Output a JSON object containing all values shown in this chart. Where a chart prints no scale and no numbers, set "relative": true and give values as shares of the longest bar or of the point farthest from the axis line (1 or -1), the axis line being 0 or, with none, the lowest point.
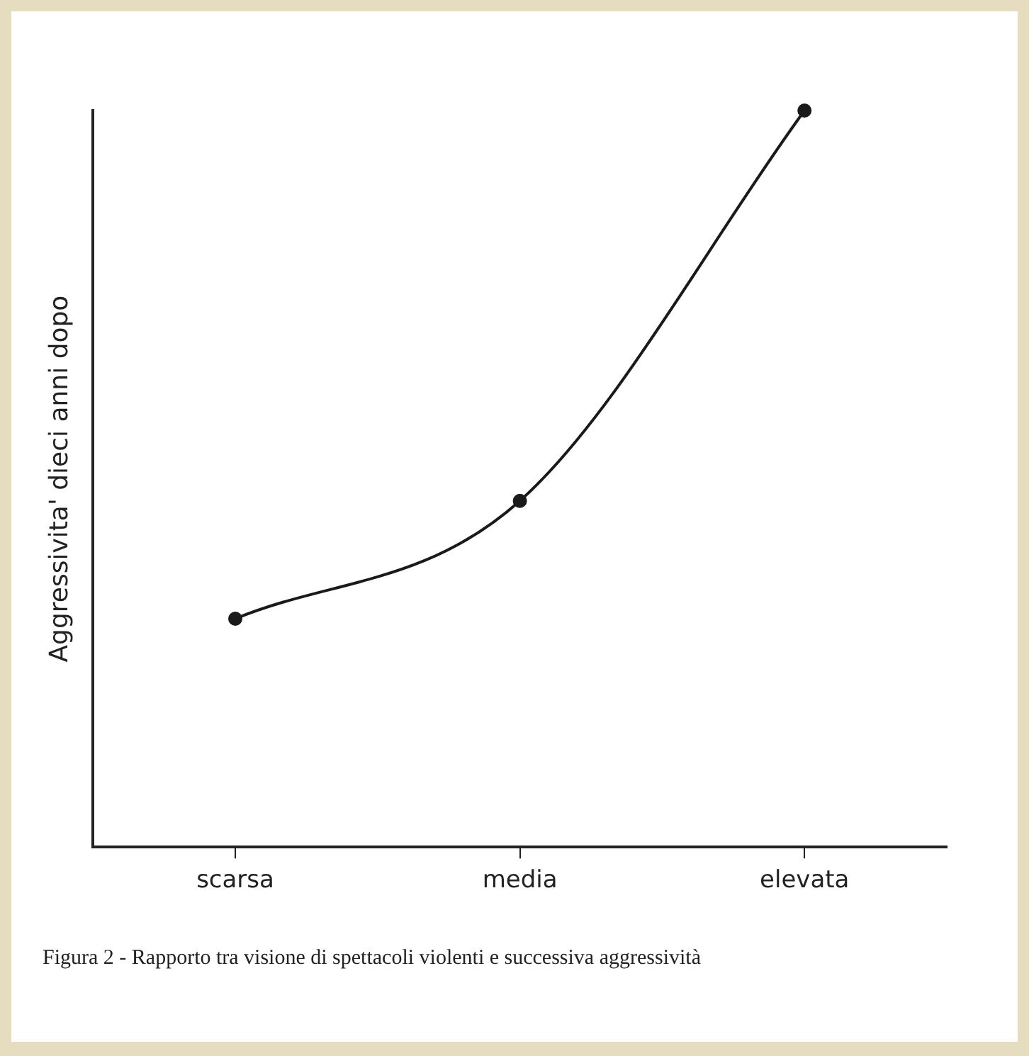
{
  "chart_data": {
    "type": "line",
    "relative": true,
    "ylabel": "Aggressivita' dieci anni dopo",
    "categories": [
      "scarsa",
      "media",
      "elevata"
    ],
    "series": [
      {
        "color": "#1a1a1a",
        "values": [
          0.31,
          0.47,
          1
        ]
      }
    ],
    "marker": "circle",
    "line_style": "solid",
    "grid": false,
    "legend": false,
    "annotations": [
      "Figura 2 -  Rapporto tra visione di spettacoli violenti e successiva aggressività"
    ]
  }
}
